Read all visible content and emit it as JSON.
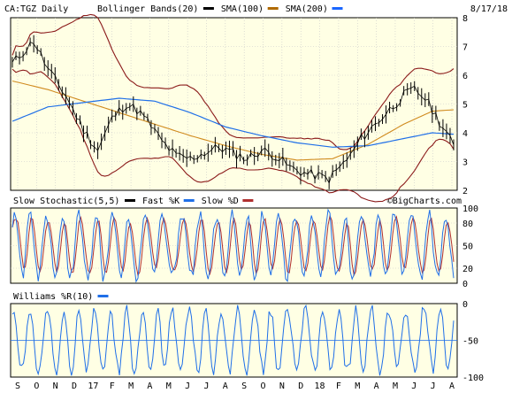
{
  "chart_data": [
    {
      "type": "line",
      "panel": "price",
      "header": {
        "symbol": "CA:TGZ Daily",
        "date": "8/17/18",
        "legend": [
          {
            "label": "Bollinger Bands(20)",
            "color": "#000000"
          },
          {
            "label": "SMA(100)",
            "color": "#b06a00"
          },
          {
            "label": "SMA(200)",
            "color": "#1a66ff"
          }
        ]
      },
      "ylim": [
        2,
        8
      ],
      "yticks": [
        "8",
        "7",
        "6",
        "5",
        "4",
        "3",
        "2"
      ],
      "grid": true,
      "watermark": "©BigCharts.com",
      "colors": {
        "price": "#000000",
        "bands": "#8b1a1a",
        "sma100": "#d08a1e",
        "sma200": "#1f6fe8"
      },
      "price_anchors": [
        [
          0,
          6.4
        ],
        [
          6,
          7.2
        ],
        [
          10,
          6.2
        ],
        [
          15,
          5.3
        ],
        [
          20,
          4.1
        ],
        [
          24,
          3.4
        ],
        [
          28,
          4.5
        ],
        [
          32,
          5.0
        ],
        [
          35,
          4.8
        ],
        [
          38,
          4.4
        ],
        [
          42,
          3.7
        ],
        [
          46,
          3.2
        ],
        [
          50,
          3.1
        ],
        [
          54,
          3.3
        ],
        [
          58,
          3.5
        ],
        [
          62,
          3.3
        ],
        [
          66,
          3.1
        ],
        [
          70,
          3.4
        ],
        [
          74,
          3.2
        ],
        [
          78,
          2.8
        ],
        [
          82,
          2.6
        ],
        [
          86,
          2.5
        ],
        [
          89,
          2.4
        ],
        [
          92,
          2.8
        ],
        [
          95,
          3.2
        ],
        [
          98,
          3.8
        ],
        [
          102,
          4.3
        ],
        [
          106,
          4.8
        ],
        [
          110,
          5.3
        ],
        [
          113,
          5.5
        ],
        [
          116,
          5.2
        ],
        [
          119,
          4.6
        ],
        [
          122,
          4.0
        ],
        [
          124,
          3.5
        ]
      ],
      "sma100_anchors": [
        [
          0,
          5.8
        ],
        [
          10,
          5.5
        ],
        [
          20,
          5.1
        ],
        [
          30,
          4.7
        ],
        [
          40,
          4.3
        ],
        [
          50,
          3.9
        ],
        [
          60,
          3.55
        ],
        [
          70,
          3.25
        ],
        [
          80,
          3.05
        ],
        [
          90,
          3.1
        ],
        [
          100,
          3.6
        ],
        [
          110,
          4.3
        ],
        [
          118,
          4.75
        ],
        [
          124,
          4.8
        ]
      ],
      "sma200_anchors": [
        [
          0,
          4.4
        ],
        [
          10,
          4.9
        ],
        [
          20,
          5.05
        ],
        [
          30,
          5.2
        ],
        [
          40,
          5.1
        ],
        [
          50,
          4.7
        ],
        [
          60,
          4.2
        ],
        [
          70,
          3.9
        ],
        [
          80,
          3.65
        ],
        [
          90,
          3.5
        ],
        [
          100,
          3.55
        ],
        [
          110,
          3.8
        ],
        [
          118,
          4.0
        ],
        [
          124,
          3.95
        ]
      ]
    },
    {
      "type": "line",
      "panel": "stochastic",
      "header": {
        "legend": [
          {
            "label": "Slow Stochastic(5,5)",
            "color": "#000000"
          },
          {
            "label": "Fast %K",
            "color": "#1f6fe8"
          },
          {
            "label": "Slow %D",
            "color": "#b03030"
          }
        ]
      },
      "ylim": [
        0,
        100
      ],
      "yticks": [
        "100",
        "80",
        "50",
        "20",
        "0"
      ],
      "series_seed": 23
    },
    {
      "type": "line",
      "panel": "williams",
      "header": {
        "legend": [
          {
            "label": "Williams %R(10)",
            "color": "#1f6fe8"
          }
        ]
      },
      "ylim": [
        -100,
        0
      ],
      "yticks": [
        "0",
        "-50",
        "-100"
      ],
      "series_seed": 91
    }
  ],
  "xaxis": {
    "labels": [
      "S",
      "O",
      "N",
      "D",
      "17",
      "F",
      "M",
      "A",
      "M",
      "J",
      "J",
      "A",
      "S",
      "O",
      "N",
      "D",
      "18",
      "F",
      "M",
      "A",
      "M",
      "J",
      "J",
      "A"
    ]
  }
}
